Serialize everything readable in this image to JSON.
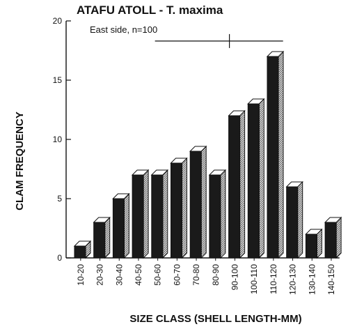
{
  "chart_data": {
    "type": "bar",
    "title": "ATAFU ATOLL - T. maxima",
    "subtitle": "East side, n=100",
    "xlabel": "SIZE CLASS (SHELL LENGTH-MM)",
    "ylabel": "CLAM FREQUENCY",
    "ylim": [
      0,
      20
    ],
    "yticks": [
      0,
      5,
      10,
      15,
      20
    ],
    "categories": [
      "10-20",
      "20-30",
      "30-40",
      "40-50",
      "50-60",
      "60-70",
      "70-80",
      "80-90",
      "90-100",
      "100-110",
      "110-120",
      "120-130",
      "130-140",
      "140-150"
    ],
    "values": [
      1,
      3,
      5,
      7,
      7,
      8,
      9,
      7,
      12,
      13,
      17,
      6,
      2,
      3
    ],
    "range_marker": {
      "from": "50-60",
      "to": "110-120",
      "center": "90-100"
    },
    "grid": false,
    "bar_style": "3d"
  }
}
